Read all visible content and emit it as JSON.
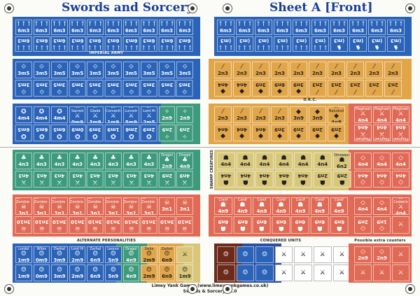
{
  "sheet": {
    "title_left": "Swords and Sorcery",
    "title_right": "Sheet A [Front]",
    "footer_line1": "Limey Yank Games (www.limeyyankgames.co.uk)",
    "footer_line2": "Swords & Sorcery v1.0"
  },
  "colors": {
    "blue": "#2a63b8",
    "orange": "#e2a64a",
    "green": "#3d9a7d",
    "red": "#e06a55",
    "yellow": "#d8c77a"
  },
  "section_labels": {
    "imperial_army": "IMPERIAL ARMY",
    "orc": "O.R.C.",
    "swamp_creatures": "SWAMP CREATURES",
    "alternate_personalities": "ALTERNATE PERSONALITIES",
    "conquered_units": "CONQUERED UNITS",
    "possible_extra_counters": "Possible extra counters"
  },
  "imperial_army": {
    "row1_value": "6m3",
    "row2_value": "(m3",
    "row2_value_alt": "6m3",
    "crossbow_value": "3m5",
    "misc_units": [
      {
        "value": "4m4"
      },
      {
        "value": "4m4"
      },
      {
        "value": "4m4"
      },
      {
        "name": "Sacred",
        "value": "0m9",
        "num": "06"
      },
      {
        "name": "Glade",
        "value": "3m9",
        "num": "17"
      },
      {
        "name": "Corvanit",
        "value": "1m9",
        "num": "20"
      },
      {
        "name": "Lunsstr",
        "value": "5m9",
        "num": "21"
      },
      {
        "name": "Lord Hi",
        "value": "2m5",
        "num": "27"
      }
    ],
    "misc_bottom": [
      "6m5",
      "6m5",
      "6m5",
      "0m9",
      "3m9",
      "1m9",
      "2m6",
      "2m9"
    ]
  },
  "orc": {
    "value": "2n3",
    "bottom_values": [
      "4n4",
      "4n4",
      "3n9",
      "6n9",
      "3n9"
    ],
    "named": [
      {
        "name": "Naludsol",
        "value": "4n9",
        "num": "15"
      }
    ],
    "orc_row2": [
      "2n3",
      "2n3",
      "2n3",
      "2n3",
      "3n9",
      "3n9",
      "4n9"
    ],
    "orc_row2_bottom": [
      "4n4",
      "4n4",
      "4n4",
      "3n9",
      "2n9",
      "2n9",
      "2n9"
    ],
    "plaghs": [
      "Plaghast",
      "Plaghast",
      "Plaghast"
    ],
    "plagh_values": [
      "4n4",
      "4n4",
      "4n4"
    ]
  },
  "green_band": {
    "values": [
      "4n3",
      "4n3",
      "4n3",
      "4n3",
      "4n3",
      "4n3",
      "4n3",
      "4n3",
      "2n9",
      "4n9"
    ],
    "names": [
      "",
      "",
      "",
      "",
      "",
      "",
      "",
      "",
      "Dragol",
      "Dragol"
    ]
  },
  "swamp": {
    "values": [
      "4n4",
      "4n4",
      "4n4",
      "4n4",
      "4n4",
      "4n4",
      "6n2"
    ],
    "names": [
      "",
      "",
      "",
      "",
      "",
      "",
      "Dinosaur"
    ],
    "bottom": [
      "4n4",
      "4n4",
      "4n4",
      "4n4",
      "4n4",
      "2n9",
      "2n9"
    ]
  },
  "red_band": {
    "zombies": [
      "35 Zombie",
      "36 Zombie",
      "33 Zombie",
      "34 Zombie",
      "35 Zombie",
      "36 Zombie",
      "37 Zombie",
      "38 Zombie"
    ],
    "values": [
      "3n1",
      "3n1",
      "3n1",
      "3n1",
      "3n1",
      "3n1",
      "3n1",
      "3n1"
    ],
    "bottom": [
      "3n10",
      "3n10",
      "3n10",
      "3n10",
      "3n10",
      "3n10",
      "3n10",
      "3n10"
    ]
  },
  "undead": {
    "names": [
      "Conif",
      "Conif",
      "Conif",
      "Conif",
      "Conif",
      "Conif",
      "Conif"
    ],
    "values": [
      "4n9",
      "4n9",
      "4n9",
      "4n9",
      "4n9",
      "4n9",
      "4n9"
    ],
    "bottom": [
      "6n9",
      "6n9",
      "6n9",
      "6n9",
      "6n9",
      "6n9",
      "6n9"
    ]
  },
  "red_right": {
    "values": [
      "4n4",
      "4n4",
      "4n4"
    ],
    "named": {
      "name": "Cedwick",
      "value": "4n4",
      "num": "12"
    },
    "bottom": [
      "2n9",
      "1n9"
    ]
  },
  "personalities": {
    "names": [
      "Lordol",
      "Wiles",
      "Darkal",
      "Lord Hi",
      "Zarhal",
      "Leonor",
      "Dragol",
      "Delia",
      "Zarbol"
    ],
    "values": [
      "1m9",
      "0m9",
      "3m9",
      "2m9",
      "6n9",
      "5n9",
      "4n9",
      "2m9",
      "6n9"
    ]
  },
  "extra": {
    "values": [
      "2n9",
      "2n9"
    ]
  }
}
